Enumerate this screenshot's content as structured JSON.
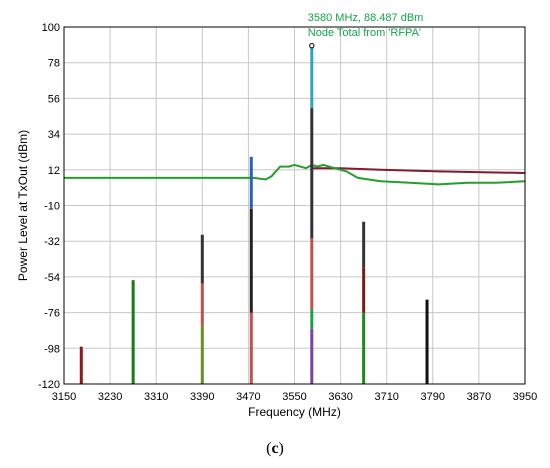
{
  "caption": "(c)",
  "chart_data": {
    "type": "line",
    "title": "",
    "xlabel": "Frequency (MHz)",
    "ylabel": "Power Level at TxOut (dBm)",
    "xlim": [
      3150,
      3950
    ],
    "ylim": [
      -120,
      100
    ],
    "x_ticks": [
      3150,
      3230,
      3310,
      3390,
      3470,
      3550,
      3630,
      3710,
      3790,
      3870,
      3950
    ],
    "y_ticks": [
      100,
      78,
      56,
      34,
      12,
      -10,
      -32,
      -54,
      -76,
      -98,
      -120
    ],
    "grid": true,
    "annotation": {
      "lines": [
        "3580 MHz, 88.487 dBm",
        "Node Total from 'RFPA'"
      ],
      "x": 3580,
      "y": 88.487
    },
    "series": [
      {
        "color": "#7f1d2e",
        "points": [
          [
            3580,
            13
          ],
          [
            3630,
            13
          ],
          [
            3700,
            12
          ],
          [
            3800,
            11
          ],
          [
            3950,
            10
          ]
        ]
      },
      {
        "color": "#22a02a",
        "points": [
          [
            3150,
            7
          ],
          [
            3480,
            7
          ],
          [
            3500,
            6
          ],
          [
            3510,
            8
          ],
          [
            3525,
            14
          ],
          [
            3540,
            14
          ],
          [
            3550,
            15
          ],
          [
            3560,
            14
          ],
          [
            3570,
            13
          ],
          [
            3580,
            15
          ],
          [
            3590,
            14
          ],
          [
            3600,
            15
          ],
          [
            3620,
            13
          ],
          [
            3640,
            11
          ],
          [
            3660,
            7
          ],
          [
            3700,
            5
          ],
          [
            3750,
            4
          ],
          [
            3800,
            3
          ],
          [
            3850,
            4
          ],
          [
            3900,
            4
          ],
          [
            3950,
            5
          ]
        ]
      }
    ],
    "stems": [
      {
        "x": 3180,
        "segments": [
          {
            "from": -120,
            "to": -97,
            "color": "#8b1a1a"
          }
        ]
      },
      {
        "x": 3270,
        "segments": [
          {
            "from": -120,
            "to": -56,
            "color": "#1a7a1a"
          }
        ]
      },
      {
        "x": 3390,
        "segments": [
          {
            "from": -120,
            "to": -84,
            "color": "#6b8e23"
          },
          {
            "from": -84,
            "to": -58,
            "color": "#c0504d"
          },
          {
            "from": -58,
            "to": -28,
            "color": "#333333"
          }
        ]
      },
      {
        "x": 3475,
        "segments": [
          {
            "from": -120,
            "to": -76,
            "color": "#c0504d"
          },
          {
            "from": -76,
            "to": -12,
            "color": "#222222"
          },
          {
            "from": -12,
            "to": 20,
            "color": "#2563b8"
          }
        ]
      },
      {
        "x": 3580,
        "segments": [
          {
            "from": -120,
            "to": -86,
            "color": "#7b3fb0"
          },
          {
            "from": -86,
            "to": -74,
            "color": "#16a34a"
          },
          {
            "from": -74,
            "to": -30,
            "color": "#c0504d"
          },
          {
            "from": -30,
            "to": 50,
            "color": "#333333"
          },
          {
            "from": 50,
            "to": 88.487,
            "color": "#2aa7b8"
          }
        ]
      },
      {
        "x": 3670,
        "segments": [
          {
            "from": -120,
            "to": -76,
            "color": "#1a8a1a"
          },
          {
            "from": -76,
            "to": -48,
            "color": "#7b1a1a"
          },
          {
            "from": -48,
            "to": -20,
            "color": "#333333"
          }
        ]
      },
      {
        "x": 3780,
        "segments": [
          {
            "from": -120,
            "to": -68,
            "color": "#111111"
          }
        ]
      }
    ]
  }
}
